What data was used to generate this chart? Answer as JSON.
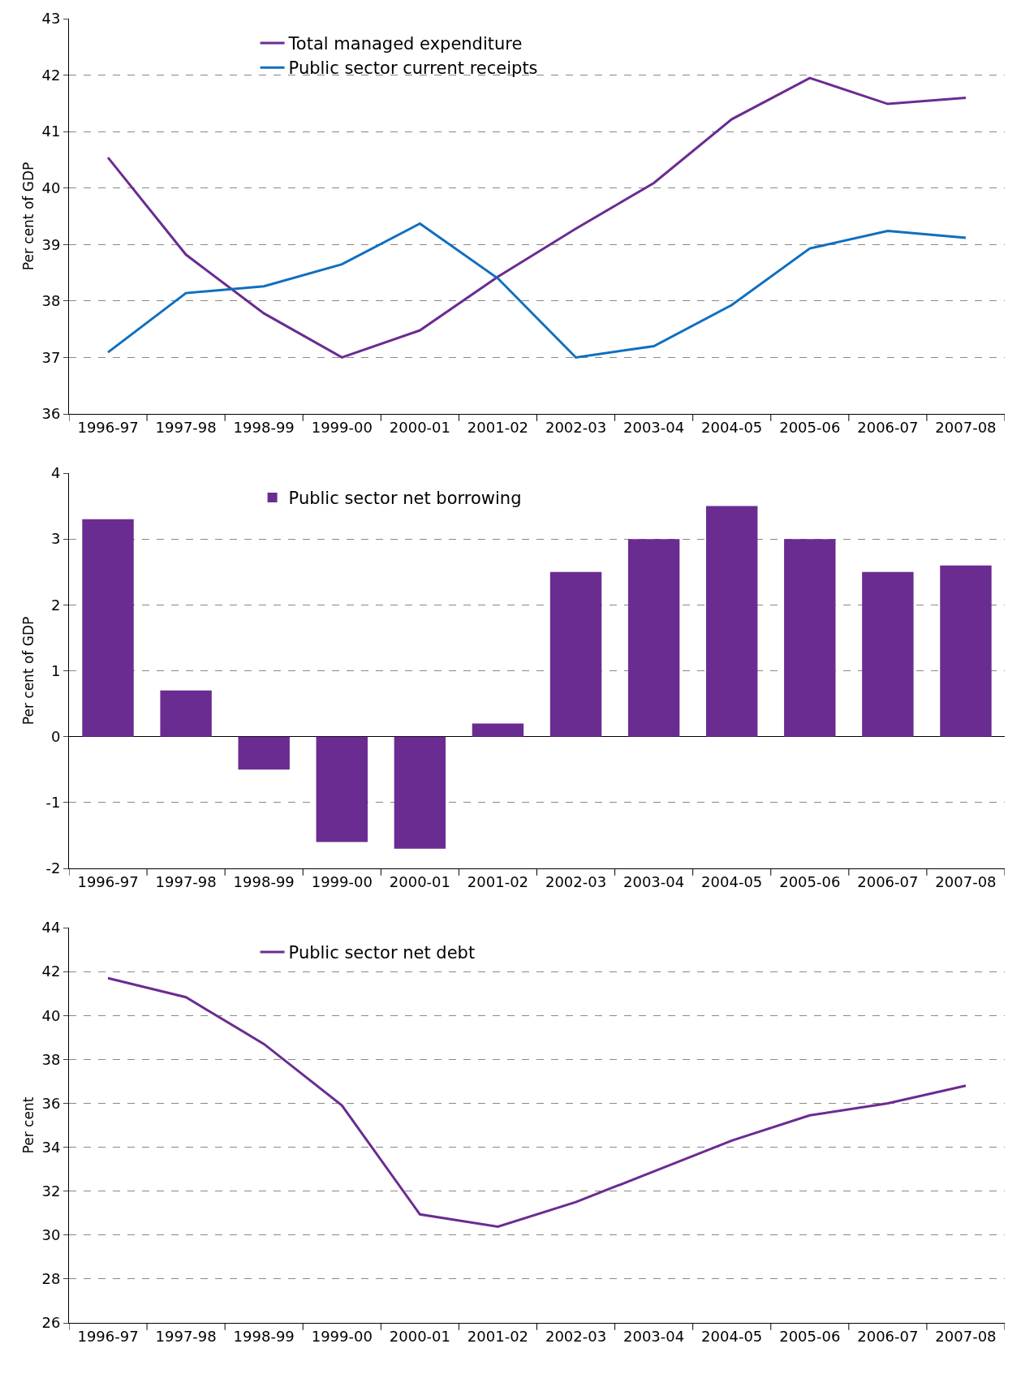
{
  "chart_data": [
    {
      "type": "line",
      "ylabel": "Per cent of GDP",
      "categories": [
        "1996-97",
        "1997-98",
        "1998-99",
        "1999-00",
        "2000-01",
        "2001-02",
        "2002-03",
        "2003-04",
        "2004-05",
        "2005-06",
        "2006-07",
        "2007-08"
      ],
      "series": [
        {
          "name": "Total managed expenditure",
          "color": "#6a2c91",
          "values": [
            40.54,
            38.82,
            37.78,
            37.0,
            37.48,
            38.43,
            39.28,
            40.09,
            41.22,
            41.95,
            41.49,
            41.6
          ]
        },
        {
          "name": "Public sector current receipts",
          "color": "#0f6fbf",
          "values": [
            37.09,
            38.14,
            38.26,
            38.65,
            39.37,
            38.4,
            37.0,
            37.2,
            37.93,
            38.93,
            39.24,
            39.12
          ]
        }
      ],
      "ylim": [
        36,
        43
      ],
      "yticks": [
        36,
        37,
        38,
        39,
        40,
        41,
        42,
        43
      ],
      "grid": "y",
      "legend": "top left",
      "marker": "none",
      "line_style": "solid"
    },
    {
      "type": "bar",
      "ylabel": "Per cent of GDP",
      "categories": [
        "1996-97",
        "1997-98",
        "1998-99",
        "1999-00",
        "2000-01",
        "2001-02",
        "2002-03",
        "2003-04",
        "2004-05",
        "2005-06",
        "2006-07",
        "2007-08"
      ],
      "series": [
        {
          "name": "Public sector net borrowing",
          "color": "#6a2c91",
          "values": [
            3.3,
            0.7,
            -0.5,
            -1.6,
            -1.7,
            0.2,
            2.5,
            3.0,
            3.5,
            3.0,
            2.5,
            2.6
          ]
        }
      ],
      "ylim": [
        -2,
        4
      ],
      "yticks": [
        -2,
        -1,
        0,
        1,
        2,
        3,
        4
      ],
      "grid": "y",
      "legend": "top left"
    },
    {
      "type": "line",
      "ylabel": "Per cent",
      "categories": [
        "1996-97",
        "1997-98",
        "1998-99",
        "1999-00",
        "2000-01",
        "2001-02",
        "2002-03",
        "2003-04",
        "2004-05",
        "2005-06",
        "2006-07",
        "2007-08"
      ],
      "series": [
        {
          "name": "Public sector net debt",
          "color": "#6a2c91",
          "values": [
            41.7,
            40.83,
            38.7,
            35.9,
            30.94,
            30.38,
            31.5,
            32.9,
            34.3,
            35.45,
            36.0,
            36.8
          ]
        }
      ],
      "ylim": [
        26,
        44
      ],
      "yticks": [
        26,
        28,
        30,
        32,
        34,
        36,
        38,
        40,
        42,
        44
      ],
      "grid": "y",
      "legend": "top left",
      "marker": "none",
      "line_style": "solid"
    }
  ]
}
